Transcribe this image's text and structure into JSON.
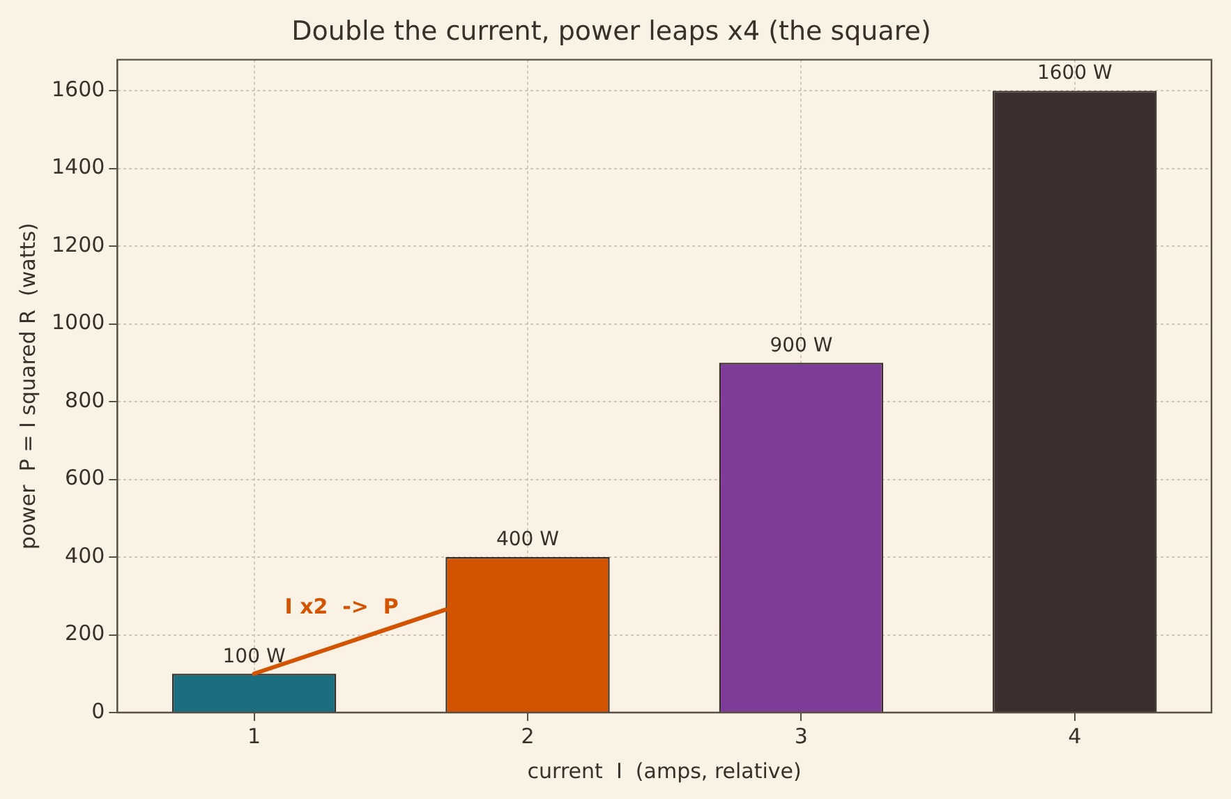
{
  "chart_data": {
    "type": "bar",
    "title": "Double the current, power leaps x4 (the square)",
    "xlabel": "current  I  (amps, relative)",
    "ylabel": "power  P = I squared R  (watts)",
    "categories": [
      "1",
      "2",
      "3",
      "4"
    ],
    "values": [
      100,
      400,
      900,
      1600
    ],
    "colors": [
      "#1a6e80",
      "#d35400",
      "#7d3c98",
      "#3b2f2f"
    ],
    "value_labels": [
      "100 W",
      "400 W",
      "900 W",
      "1600 W"
    ],
    "annotations": [
      "I x2  ->  P"
    ],
    "ylim": [
      0,
      1680
    ],
    "yticks": [
      0,
      200,
      400,
      600,
      800,
      1000,
      1200,
      1400,
      1600
    ],
    "grid": true
  }
}
